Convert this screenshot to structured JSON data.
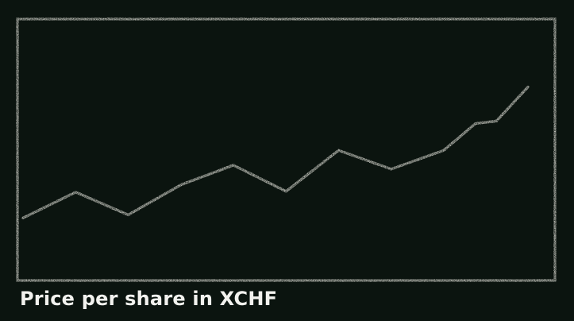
{
  "caption": "Price per share in XCHF",
  "colors": {
    "background": "#0b140f",
    "chalk": "#dcdcd4",
    "text": "#f2f2ee"
  },
  "chart_data": {
    "type": "line",
    "title": "Price per share in XCHF",
    "xlabel": "",
    "ylabel": "",
    "grid": false,
    "legend": "none",
    "ylim": [
      0,
      100
    ],
    "series": [
      {
        "values": [
          [
            0,
            23.9
          ],
          [
            1,
            33.8
          ],
          [
            2,
            25.1
          ],
          [
            3,
            36.6
          ],
          [
            4,
            44.1
          ],
          [
            5,
            34.1
          ],
          [
            6,
            49.8
          ],
          [
            7,
            42.6
          ],
          [
            8,
            49.8
          ],
          [
            8.6,
            60.0
          ],
          [
            9,
            61.0
          ],
          [
            9.6,
            74.0
          ]
        ]
      }
    ]
  }
}
